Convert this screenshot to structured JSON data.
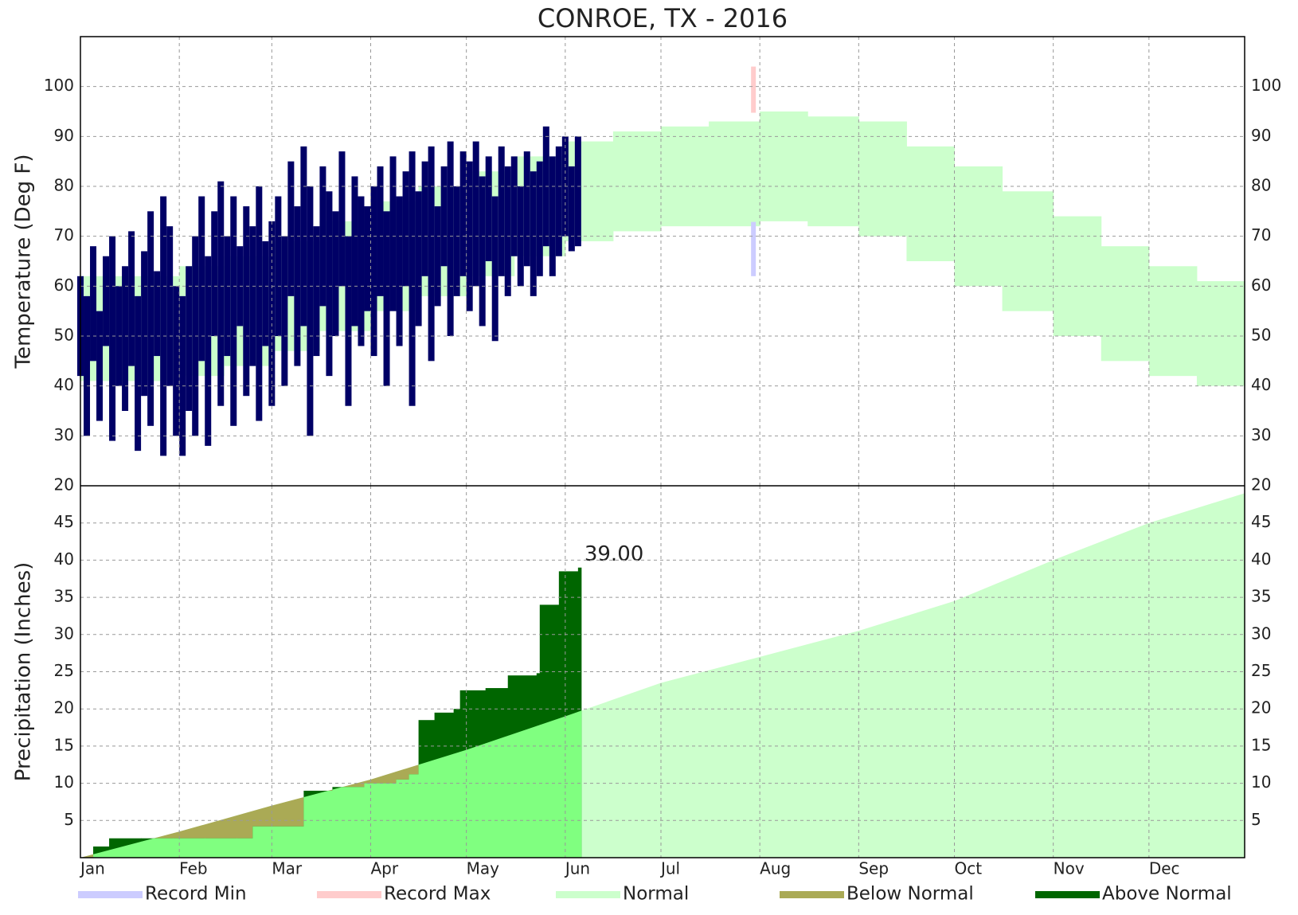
{
  "title": "CONROE, TX - 2016",
  "legend": [
    {
      "name": "Record Min",
      "color": "#ccccff"
    },
    {
      "name": "Record Max",
      "color": "#ffcccc"
    },
    {
      "name": "Normal",
      "color": "#ccffcc"
    },
    {
      "name": "Below Normal",
      "color": "#aaaa55"
    },
    {
      "name": "Above Normal",
      "color": "#006600"
    }
  ],
  "chart_data": [
    {
      "type": "temperature",
      "ylabel": "Temperature (Deg F)",
      "xlim": [
        1,
        366
      ],
      "ylim": [
        20,
        110
      ],
      "yticks": [
        20,
        30,
        40,
        50,
        60,
        70,
        80,
        90,
        100
      ],
      "grid": true,
      "observed": {
        "color": "#000066",
        "x": [
          1,
          3,
          5,
          7,
          9,
          11,
          13,
          15,
          17,
          19,
          21,
          23,
          25,
          27,
          29,
          31,
          33,
          35,
          37,
          39,
          41,
          43,
          45,
          47,
          49,
          51,
          53,
          55,
          57,
          59,
          61,
          63,
          65,
          67,
          69,
          71,
          73,
          75,
          77,
          79,
          81,
          83,
          85,
          87,
          89,
          91,
          93,
          95,
          97,
          99,
          101,
          103,
          105,
          107,
          109,
          111,
          113,
          115,
          117,
          119,
          121,
          123,
          125,
          127,
          129,
          131,
          133,
          135,
          137,
          139,
          141,
          143,
          145,
          147,
          149,
          151,
          153,
          155,
          157
        ],
        "high": [
          62,
          58,
          68,
          55,
          66,
          70,
          60,
          64,
          71,
          58,
          67,
          75,
          63,
          78,
          72,
          60,
          58,
          64,
          70,
          78,
          66,
          75,
          81,
          70,
          78,
          68,
          76,
          72,
          80,
          69,
          73,
          78,
          70,
          85,
          76,
          88,
          80,
          72,
          84,
          79,
          75,
          87,
          70,
          82,
          78,
          76,
          80,
          84,
          75,
          86,
          78,
          83,
          87,
          79,
          85,
          88,
          76,
          84,
          89,
          80,
          87,
          85,
          89,
          82,
          86,
          78,
          88,
          84,
          86,
          80,
          87,
          83,
          85,
          92,
          86,
          88,
          90,
          84,
          90
        ],
        "low": [
          42,
          30,
          45,
          33,
          48,
          29,
          40,
          35,
          44,
          27,
          38,
          32,
          46,
          26,
          40,
          30,
          26,
          35,
          30,
          45,
          28,
          50,
          36,
          46,
          32,
          52,
          38,
          44,
          33,
          48,
          36,
          50,
          40,
          58,
          44,
          52,
          30,
          46,
          56,
          42,
          50,
          60,
          36,
          52,
          48,
          55,
          46,
          58,
          40,
          55,
          48,
          60,
          36,
          52,
          62,
          45,
          56,
          64,
          50,
          58,
          62,
          55,
          60,
          52,
          65,
          49,
          62,
          58,
          66,
          60,
          64,
          58,
          62,
          68,
          62,
          66,
          70,
          67,
          68
        ]
      },
      "normal": {
        "x": [
          1,
          16,
          32,
          46,
          61,
          76,
          92,
          107,
          122,
          137,
          153,
          168,
          183,
          198,
          214,
          229,
          245,
          260,
          275,
          290,
          306,
          321,
          336,
          351,
          366
        ],
        "high": [
          62,
          62,
          64,
          66,
          69,
          73,
          77,
          80,
          83,
          86,
          89,
          91,
          92,
          93,
          95,
          94,
          93,
          88,
          84,
          79,
          74,
          68,
          64,
          61,
          61
        ],
        "low": [
          41,
          41,
          42,
          44,
          47,
          51,
          55,
          58,
          62,
          66,
          69,
          71,
          72,
          72,
          73,
          72,
          70,
          65,
          60,
          55,
          50,
          45,
          42,
          40,
          40
        ]
      },
      "record": {
        "x": [
          212
        ],
        "max": [
          104
        ],
        "min": [
          62
        ]
      }
    },
    {
      "type": "precipitation",
      "ylabel": "Precipitation (Inches)",
      "xlim": [
        1,
        366
      ],
      "ylim": [
        0,
        50
      ],
      "yticks": [
        5,
        10,
        15,
        20,
        25,
        30,
        35,
        40,
        45
      ],
      "grid": true,
      "xticks": [
        {
          "value": 1,
          "label": "Jan"
        },
        {
          "value": 32,
          "label": "Feb"
        },
        {
          "value": 61,
          "label": "Mar"
        },
        {
          "value": 92,
          "label": "Apr"
        },
        {
          "value": 122,
          "label": "May"
        },
        {
          "value": 153,
          "label": "Jun"
        },
        {
          "value": 183,
          "label": "Jul"
        },
        {
          "value": 214,
          "label": "Aug"
        },
        {
          "value": 245,
          "label": "Sep"
        },
        {
          "value": 275,
          "label": "Oct"
        },
        {
          "value": 306,
          "label": "Nov"
        },
        {
          "value": 336,
          "label": "Dec"
        }
      ],
      "observed": {
        "x": [
          1,
          5,
          10,
          20,
          30,
          40,
          50,
          55,
          70,
          71,
          80,
          90,
          100,
          104,
          107,
          112,
          118,
          120,
          128,
          135,
          144,
          145,
          150,
          151,
          157
        ],
        "values": [
          0,
          1.5,
          2.6,
          2.6,
          2.6,
          2.6,
          2.6,
          4.2,
          4.2,
          9.0,
          9.5,
          10,
          10.5,
          11.2,
          18.5,
          19.5,
          20,
          22.5,
          22.8,
          24.5,
          24.8,
          34,
          34,
          38.5,
          39.0
        ],
        "last_value_label": "39.00"
      },
      "normal": {
        "x": [
          1,
          32,
          61,
          92,
          122,
          153,
          183,
          214,
          245,
          275,
          306,
          336,
          366
        ],
        "values": [
          0,
          3.5,
          7,
          10.5,
          14.5,
          19,
          23.5,
          27,
          30.5,
          34.5,
          40,
          45,
          49
        ]
      }
    }
  ]
}
